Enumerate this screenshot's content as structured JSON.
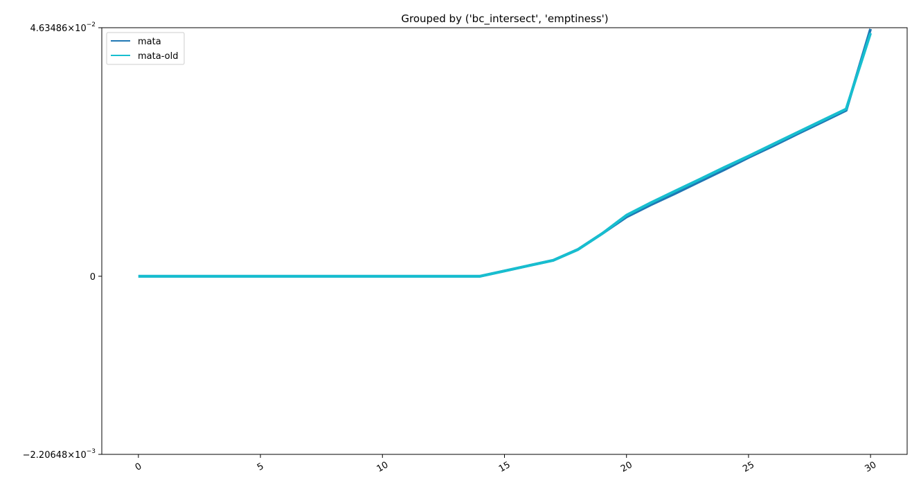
{
  "chart_data": {
    "type": "line",
    "title": "Grouped by ('bc_intersect', 'emptiness')",
    "xlabel": "",
    "ylabel": "",
    "xlim": [
      -1.5,
      31.5
    ],
    "ylim": [
      -0.00220648,
      0.0463486
    ],
    "y_scale": "symlog",
    "grid": false,
    "legend_position": "top-left",
    "x_ticks": [
      0,
      5,
      10,
      15,
      20,
      25,
      30
    ],
    "x_tick_labels": [
      "0",
      "5",
      "10",
      "15",
      "20",
      "25",
      "30"
    ],
    "y_tick_labels": [
      {
        "value": 0.0463486,
        "mantissa": "4.63486",
        "exp": "−2"
      },
      {
        "value": 0,
        "mantissa": "0",
        "exp": ""
      },
      {
        "value": -0.00220648,
        "mantissa": "−2.20648",
        "exp": "−3"
      }
    ],
    "x": [
      0,
      1,
      2,
      3,
      4,
      5,
      6,
      7,
      8,
      9,
      10,
      11,
      12,
      13,
      14,
      15,
      16,
      17,
      18,
      19,
      20,
      21,
      22,
      23,
      24,
      25,
      26,
      27,
      28,
      29,
      30
    ],
    "series": [
      {
        "name": "mata",
        "color": "#1f77b4",
        "values": [
          0,
          0,
          0,
          0,
          0,
          0,
          0,
          0,
          0,
          0,
          0,
          0,
          0,
          0,
          0,
          1e-06,
          2e-06,
          3e-06,
          5e-06,
          8e-06,
          1.3e-05,
          2.2e-05,
          3.6e-05,
          6e-05,
          0.0001,
          0.00017,
          0.00028,
          0.00047,
          0.00078,
          0.0013,
          0.044
        ]
      },
      {
        "name": "mata-old",
        "color": "#17becf",
        "values": [
          0,
          0,
          0,
          0,
          0,
          0,
          0,
          0,
          0,
          0,
          0,
          0,
          0,
          0,
          0,
          1e-06,
          2e-06,
          3e-06,
          5e-06,
          8e-06,
          1.4e-05,
          2.4e-05,
          4e-05,
          6.6e-05,
          0.00011,
          0.00018,
          0.0003,
          0.0005,
          0.00083,
          0.00138,
          0.0366
        ]
      }
    ]
  }
}
